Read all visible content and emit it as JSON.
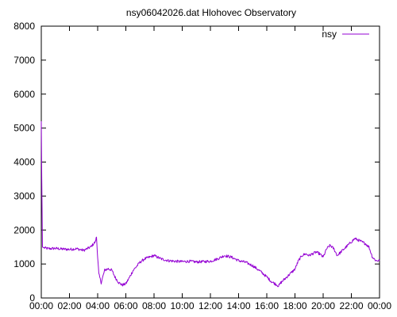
{
  "chart_data": {
    "type": "line",
    "title": "nsy06042026.dat Hlohovec Observatory",
    "xlabel": "",
    "ylabel": "",
    "xlim": [
      "00:00",
      "24:00"
    ],
    "ylim": [
      0,
      8000
    ],
    "x_ticks": [
      "00:00",
      "02:00",
      "04:00",
      "06:00",
      "08:00",
      "10:00",
      "12:00",
      "14:00",
      "16:00",
      "18:00",
      "20:00",
      "22:00",
      "00:00"
    ],
    "y_ticks": [
      "0",
      "1000",
      "2000",
      "3000",
      "4000",
      "5000",
      "6000",
      "7000",
      "8000"
    ],
    "grid": false,
    "legend": "top-right",
    "series": [
      {
        "name": "nsy",
        "color": "#9400d3",
        "x": [
          "00:00",
          "00:02",
          "00:05",
          "00:10",
          "00:30",
          "01:00",
          "01:30",
          "02:00",
          "02:30",
          "03:00",
          "03:30",
          "03:50",
          "03:55",
          "04:00",
          "04:05",
          "04:15",
          "04:30",
          "04:45",
          "05:00",
          "05:15",
          "05:30",
          "05:45",
          "06:00",
          "06:15",
          "06:30",
          "07:00",
          "07:20",
          "07:40",
          "08:00",
          "08:15",
          "08:30",
          "09:00",
          "09:30",
          "10:00",
          "10:30",
          "11:00",
          "11:30",
          "12:00",
          "12:30",
          "13:00",
          "13:30",
          "14:00",
          "14:30",
          "15:00",
          "15:30",
          "16:00",
          "16:20",
          "16:40",
          "16:50",
          "17:00",
          "17:15",
          "17:30",
          "18:00",
          "18:15",
          "18:30",
          "18:45",
          "19:00",
          "19:30",
          "19:45",
          "20:00",
          "20:15",
          "20:30",
          "20:45",
          "21:00",
          "21:15",
          "21:30",
          "21:45",
          "22:00",
          "22:15",
          "22:30",
          "22:45",
          "23:00",
          "23:15",
          "23:30",
          "23:45",
          "24:00"
        ],
        "values": [
          5200,
          3500,
          1500,
          1480,
          1450,
          1460,
          1440,
          1430,
          1450,
          1400,
          1500,
          1650,
          1800,
          1200,
          700,
          450,
          820,
          860,
          820,
          600,
          450,
          380,
          420,
          600,
          800,
          1050,
          1150,
          1200,
          1250,
          1200,
          1150,
          1100,
          1080,
          1070,
          1080,
          1060,
          1070,
          1080,
          1150,
          1250,
          1200,
          1100,
          1050,
          950,
          800,
          620,
          480,
          400,
          350,
          450,
          550,
          650,
          850,
          1100,
          1250,
          1300,
          1250,
          1350,
          1300,
          1200,
          1450,
          1550,
          1450,
          1250,
          1350,
          1450,
          1550,
          1650,
          1750,
          1700,
          1650,
          1600,
          1500,
          1200,
          1100,
          1100
        ]
      }
    ]
  }
}
